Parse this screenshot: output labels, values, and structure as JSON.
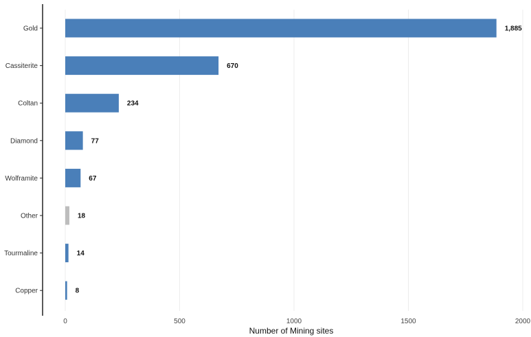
{
  "chart_data": {
    "type": "bar",
    "orientation": "horizontal",
    "title": "",
    "xlabel": "Number of Mining sites",
    "ylabel": "",
    "xlim": [
      0,
      2000
    ],
    "x_ticks": [
      0,
      500,
      1000,
      1500,
      2000
    ],
    "grid": "vertical",
    "categories": [
      "Gold",
      "Cassiterite",
      "Coltan",
      "Diamond",
      "Wolframite",
      "Other",
      "Tourmaline",
      "Copper"
    ],
    "values": [
      1885,
      670,
      234,
      77,
      67,
      18,
      14,
      8
    ],
    "value_labels": [
      "1,885",
      "670",
      "234",
      "77",
      "67",
      "18",
      "14",
      "8"
    ],
    "colors": [
      "#4a7fb9",
      "#4a7fb9",
      "#4a7fb9",
      "#4a7fb9",
      "#4a7fb9",
      "#bdbdbd",
      "#4a7fb9",
      "#4a7fb9"
    ],
    "legend": "none"
  }
}
